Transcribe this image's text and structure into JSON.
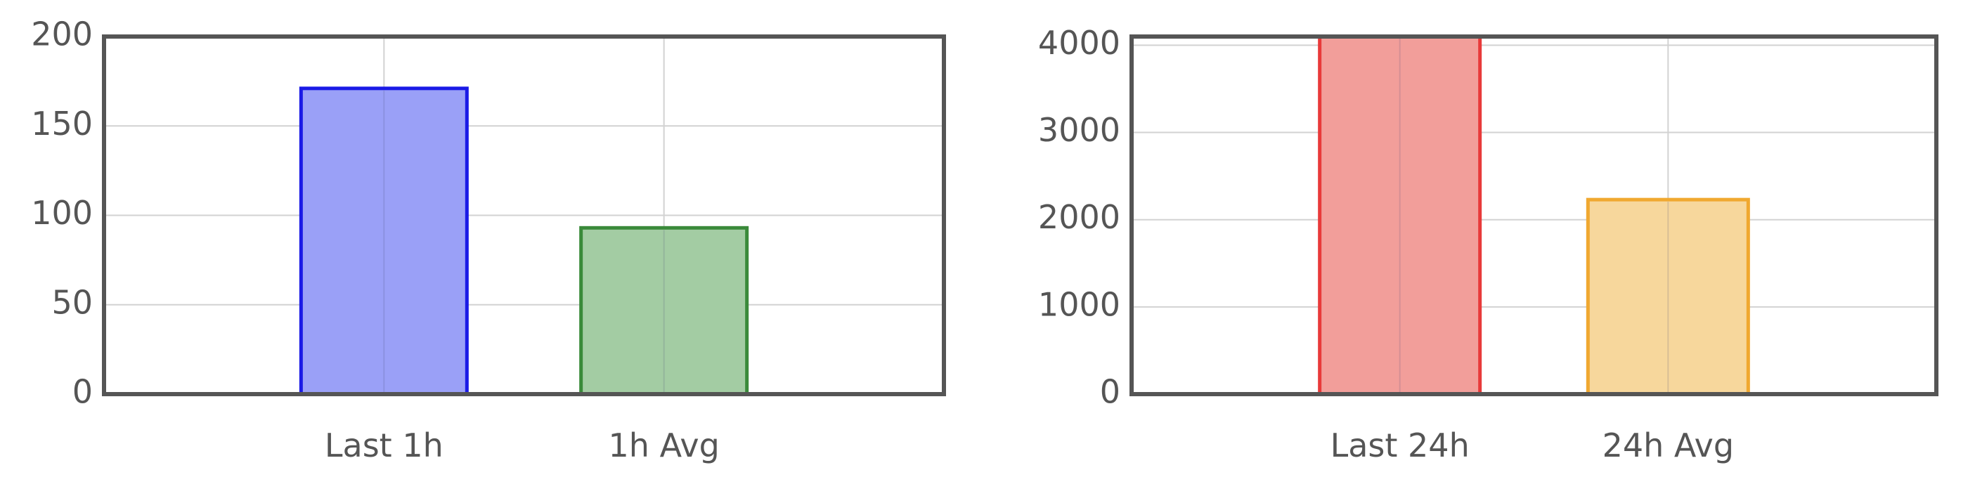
{
  "chart_data": [
    {
      "type": "bar",
      "categories": [
        "Last 1h",
        "1h Avg"
      ],
      "values": [
        171,
        93
      ],
      "ylim": [
        0,
        200
      ],
      "yticks": [
        0,
        50,
        100,
        150,
        200
      ],
      "grid": true,
      "legend": "none",
      "bar_fill_colors": [
        "#9aa0f7",
        "#a3cca3"
      ],
      "bar_stroke_colors": [
        "#1a1ae6",
        "#3a8a3a"
      ]
    },
    {
      "type": "bar",
      "categories": [
        "Last 24h",
        "24h Avg"
      ],
      "values": [
        4100,
        2230
      ],
      "ylim": [
        0,
        4100
      ],
      "yticks": [
        0,
        1000,
        2000,
        3000,
        4000
      ],
      "grid": true,
      "legend": "none",
      "bar_fill_colors": [
        "#f29e9a",
        "#f7d79c"
      ],
      "bar_stroke_colors": [
        "#e83a3a",
        "#f0a830"
      ]
    }
  ]
}
